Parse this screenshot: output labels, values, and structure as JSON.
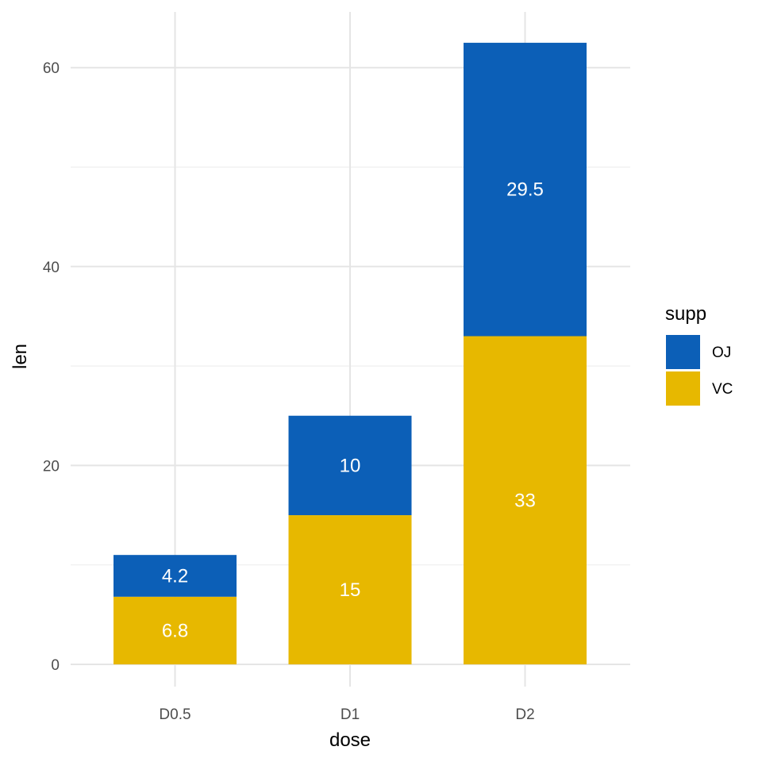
{
  "chart_data": {
    "type": "bar",
    "stacked": true,
    "title": "",
    "xlabel": "dose",
    "ylabel": "len",
    "categories": [
      "D0.5",
      "D1",
      "D2"
    ],
    "ylim": [
      0,
      62.5
    ],
    "yticks": [
      0,
      20,
      40,
      60
    ],
    "grid": true,
    "legend": {
      "title": "supp",
      "position": "right"
    },
    "series": [
      {
        "name": "VC",
        "color": "#E7B800",
        "values": [
          6.8,
          15,
          33
        ],
        "labels": [
          "6.8",
          "15",
          "33"
        ]
      },
      {
        "name": "OJ",
        "color": "#0C5FB7",
        "values": [
          4.2,
          10,
          29.5
        ],
        "labels": [
          "4.2",
          "10",
          "29.5"
        ]
      }
    ],
    "legend_order": [
      "OJ",
      "VC"
    ]
  }
}
